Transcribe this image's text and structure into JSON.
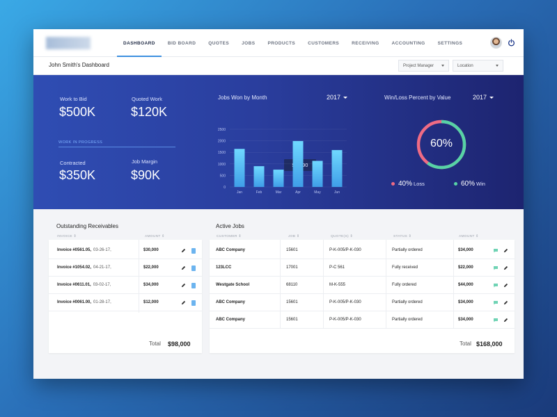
{
  "nav": {
    "tabs": [
      "DASHBOARD",
      "BID BOARD",
      "QUOTES",
      "JOBS",
      "PRODUCTS",
      "CUSTOMERS",
      "RECEIVING",
      "ACCOUNTING",
      "SETTINGS"
    ],
    "active_tab": "DASHBOARD"
  },
  "subheader": {
    "title": "John Smith's Dashboard",
    "role_select": "Project Manager",
    "location_select": "Location"
  },
  "kpis": {
    "work_to_bid": {
      "label": "Work to Bid",
      "value": "$500K"
    },
    "quoted_work": {
      "label": "Quoted Work",
      "value": "$120K"
    },
    "wip_label": "WORK IN PROGRESS",
    "contracted": {
      "label": "Contracted",
      "value": "$350K"
    },
    "job_margin": {
      "label": "Job Margin",
      "value": "$90K"
    }
  },
  "jobs_chart": {
    "title": "Jobs Won by Month",
    "year": "2017",
    "tooltip": "$ 1990"
  },
  "winloss": {
    "title": "Win/Loss Percent by Value",
    "year": "2017",
    "center": "60%",
    "loss_value": "40%",
    "loss_label": "Loss",
    "win_value": "60%",
    "win_label": "Win",
    "loss_color": "#ef6b84",
    "win_color": "#57d3a6"
  },
  "chart_data": {
    "type": "bar",
    "title": "Jobs Won by Month",
    "categories": [
      "Jan",
      "Feb",
      "Mar",
      "Apr",
      "May",
      "Jun"
    ],
    "values": [
      1650,
      900,
      750,
      1990,
      1130,
      1600
    ],
    "ylim": [
      0,
      2500
    ],
    "yticks": [
      "0",
      "500",
      "1000",
      "1500",
      "2000",
      "2500"
    ],
    "grid": true
  },
  "receivables": {
    "title": "Outstanding Receivables",
    "headers": {
      "invoice": "INVOICE ⇕",
      "amount": "AMOUNT ⇕"
    },
    "rows": [
      {
        "invoice": "Invoice #0561.05,",
        "date": "03-26-17,",
        "amount": "$30,000"
      },
      {
        "invoice": "Invoice #1054.02,",
        "date": "04-21-17,",
        "amount": "$22,000"
      },
      {
        "invoice": "Invoice #0611.01,",
        "date": "03-02-17,",
        "amount": "$34,000"
      },
      {
        "invoice": "Invoice #0061.00,",
        "date": "01-28-17,",
        "amount": "$12,000"
      }
    ],
    "total_label": "Total",
    "total_value": "$98,000"
  },
  "active_jobs": {
    "title": "Active Jobs",
    "headers": {
      "customer": "CUSTOMER ⇕",
      "job": "JOB ⇕",
      "quotes": "QUOTE(S) ⇕",
      "status": "STATUS ⇕",
      "amount": "AMOUNT ⇕"
    },
    "rows": [
      {
        "customer": "ABC Company",
        "job": "15601",
        "quotes": "P-K-005/P-K-030",
        "status": "Partially ordered",
        "amount": "$34,000"
      },
      {
        "customer": "123LCC",
        "job": "17001",
        "quotes": "P-C 561",
        "status": "Fully received",
        "amount": "$22,000"
      },
      {
        "customer": "Westgate School",
        "job": "68110",
        "quotes": "M-K-555",
        "status": "Fully ordered",
        "amount": "$44,000"
      },
      {
        "customer": "ABC Company",
        "job": "15601",
        "quotes": "P-K-005/P-K-030",
        "status": "Partially ordered",
        "amount": "$34,000"
      },
      {
        "customer": "ABC Company",
        "job": "15601",
        "quotes": "P-K-005/P-K-030",
        "status": "Partially ordered",
        "amount": "$34,000"
      }
    ],
    "total_label": "Total",
    "total_value": "$168,000"
  }
}
